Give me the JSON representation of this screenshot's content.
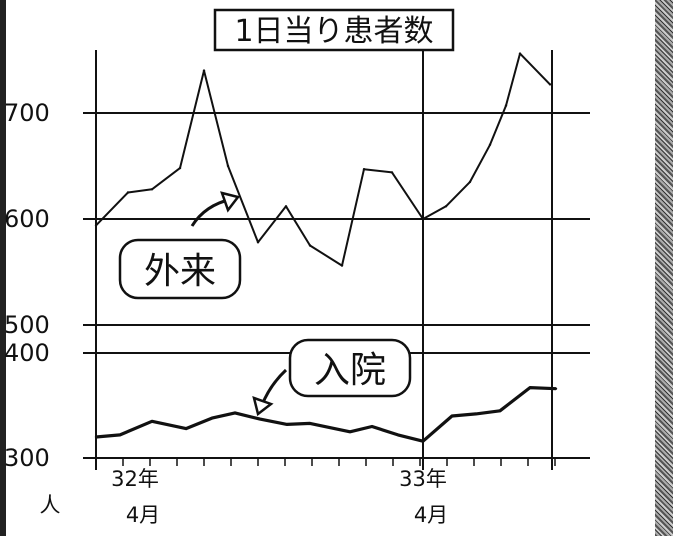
{
  "chart_data": {
    "type": "line",
    "title": "1日当り患者数",
    "ylabel_unit": "人",
    "y_axis_break": {
      "lower_top": 400,
      "upper_bottom": 500
    },
    "yticks": [
      "300",
      "400",
      "500",
      "600",
      "700"
    ],
    "x_ticks": [
      {
        "index": 0,
        "year": "32年",
        "month": "4月"
      },
      {
        "index": 12,
        "year": "33年",
        "month": "4月"
      }
    ],
    "grid": "horizontal lines at ticks",
    "series": [
      {
        "name": "外来",
        "values": [
          594,
          625,
          628,
          648,
          740,
          650,
          578,
          612,
          575,
          556,
          647,
          644,
          600,
          612,
          635,
          670,
          707,
          756,
          727
        ]
      },
      {
        "name": "入院",
        "values": [
          320,
          322,
          335,
          328,
          338,
          343,
          337,
          332,
          333,
          325,
          330,
          322,
          316,
          340,
          342,
          345,
          367,
          366
        ]
      }
    ]
  }
}
